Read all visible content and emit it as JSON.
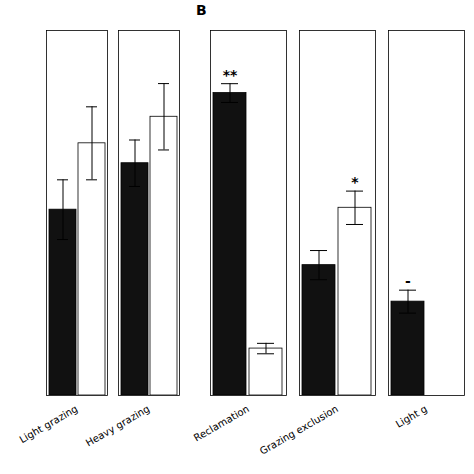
{
  "chart_data": [
    {
      "type": "bar",
      "categories": [
        "Light grazing",
        "Heavy grazing"
      ],
      "series": [
        {
          "color": "#111111",
          "values": [
            2.8,
            3.5
          ],
          "errors": [
            0.45,
            0.35
          ]
        },
        {
          "color": "#ffffff",
          "values": [
            3.8,
            4.2
          ],
          "errors": [
            0.55,
            0.5
          ]
        }
      ],
      "ylim": [
        0,
        5.5
      ],
      "yticks": [],
      "tick_labels": "x",
      "grid": false
    },
    {
      "type": "bar",
      "title": "B",
      "categories": [
        "Reclamation",
        "Grazing exclusion",
        "Light g"
      ],
      "series": [
        {
          "color": "#111111",
          "values": [
            5.8,
            2.5,
            1.8
          ],
          "errors": [
            0.18,
            0.28,
            0.22
          ],
          "annotations": [
            "**",
            null,
            "-"
          ]
        },
        {
          "color": "#ffffff",
          "values": [
            0.9,
            3.6,
            0.0
          ],
          "errors": [
            0.1,
            0.32,
            0.0
          ],
          "annotations": [
            null,
            "*",
            null
          ]
        }
      ],
      "ylim": [
        0,
        7.0
      ],
      "yticks": [],
      "tick_labels": "x",
      "grid": false
    }
  ]
}
